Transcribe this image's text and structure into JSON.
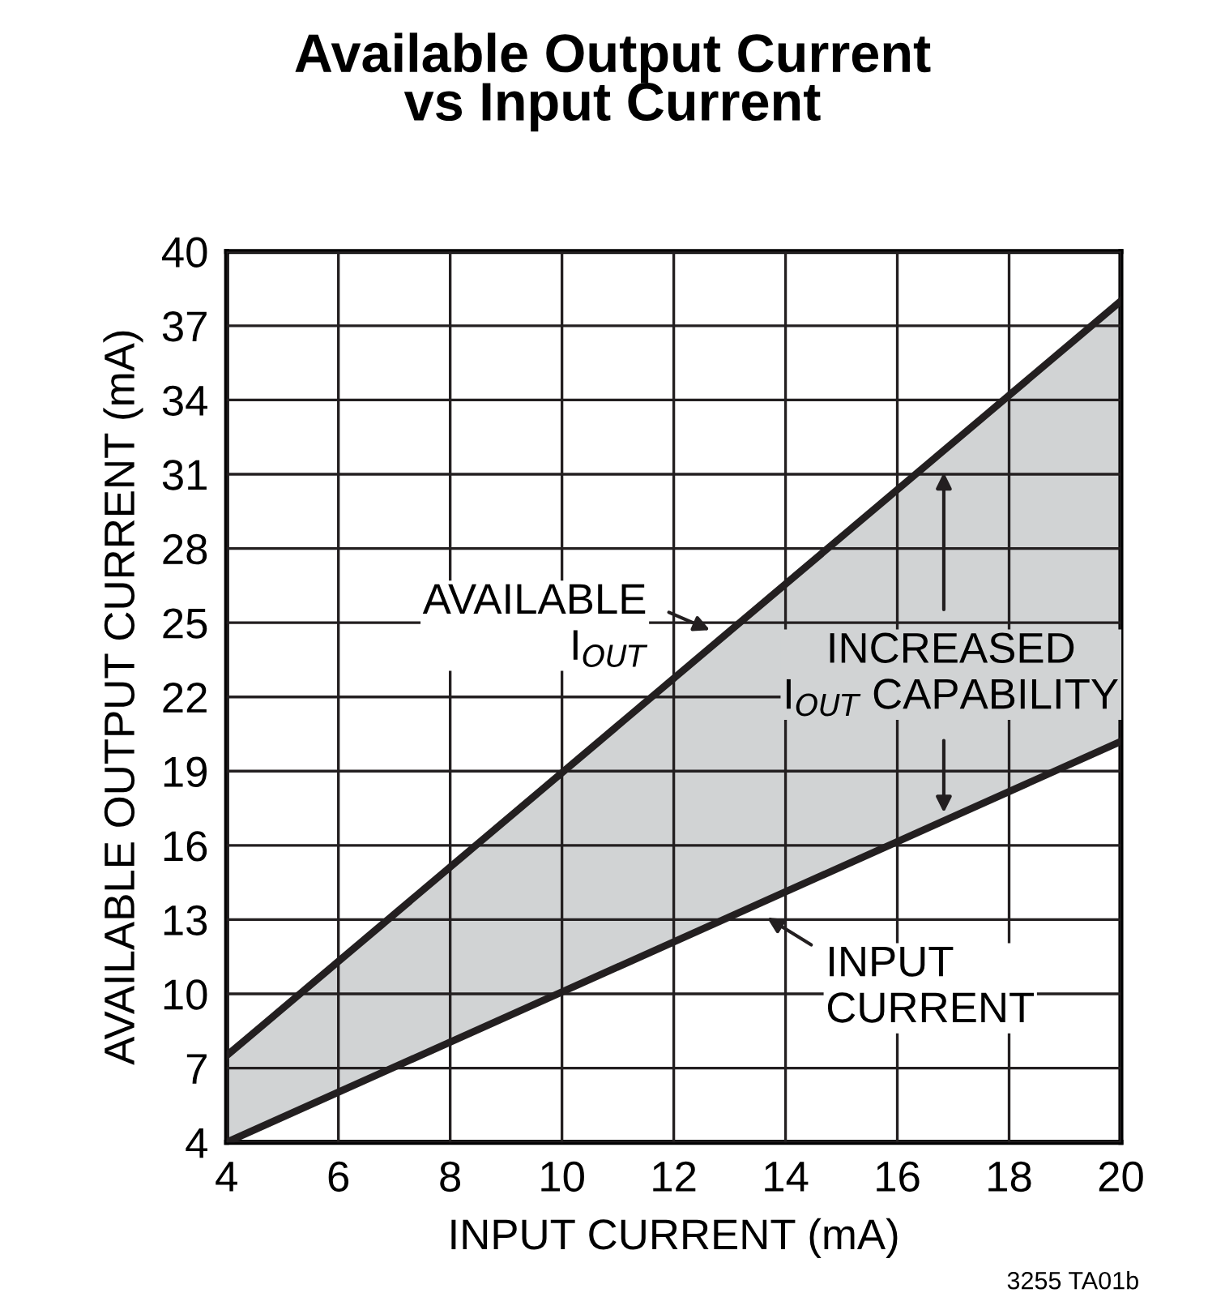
{
  "chart_data": {
    "type": "line",
    "title": "Available Output Current\nvs Input Current",
    "xlabel": "INPUT CURRENT (mA)",
    "ylabel": "AVAILABLE OUTPUT CURRENT (mA)",
    "x": [
      4,
      20
    ],
    "series": [
      {
        "color": "#231f20",
        "values": [
          7.5,
          38
        ],
        "lower": [
          4,
          20.2
        ],
        "upper": [
          7.5,
          38
        ]
      },
      {
        "color": "#231f20",
        "values": [
          4,
          20.2
        ]
      }
    ],
    "xlim": [
      4,
      20
    ],
    "ylim": [
      4,
      40
    ],
    "xticks": [
      4,
      6,
      8,
      10,
      12,
      14,
      16,
      18,
      20
    ],
    "yticks": [
      4,
      7,
      10,
      13,
      16,
      19,
      22,
      25,
      28,
      31,
      34,
      37,
      40
    ],
    "grid": true,
    "legend": false,
    "line_style": "solid",
    "marker": "none",
    "annotations": [
      "AVAILABLE\nI$_{OUT}$",
      "INCREASED\nI$_{OUT}$ CAPABILITY",
      "INPUT\nCURRENT",
      "3255 TA01b"
    ]
  }
}
